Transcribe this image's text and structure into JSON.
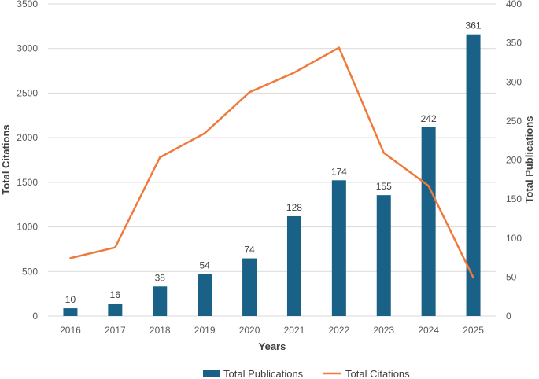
{
  "chart_data": {
    "type": "bar",
    "categories": [
      "2016",
      "2017",
      "2018",
      "2019",
      "2020",
      "2021",
      "2022",
      "2023",
      "2024",
      "2025"
    ],
    "series": [
      {
        "name": "Total Publications",
        "chart_type": "bar",
        "axis": "right",
        "color": "#1a6187",
        "values": [
          10,
          16,
          38,
          54,
          74,
          128,
          174,
          155,
          242,
          361
        ],
        "labels": [
          "10",
          "16",
          "38",
          "54",
          "74",
          "128",
          "174",
          "155",
          "242",
          "361"
        ]
      },
      {
        "name": "Total Citations",
        "chart_type": "line",
        "axis": "left",
        "color": "#ef7a3c",
        "values": [
          650,
          770,
          1780,
          2050,
          2510,
          2730,
          3010,
          1830,
          1460,
          430
        ]
      }
    ],
    "xlabel": "Years",
    "ylabel": "Total Citations",
    "y2label": "Total Publications",
    "ylim": [
      0,
      3500
    ],
    "y2lim": [
      0,
      400
    ],
    "yticks": [
      "0",
      "500",
      "1000",
      "1500",
      "2000",
      "2500",
      "3000",
      "3500"
    ],
    "y2ticks": [
      "0",
      "50",
      "100",
      "150",
      "200",
      "250",
      "300",
      "350",
      "400"
    ],
    "grid": true,
    "legend": "bottom"
  }
}
